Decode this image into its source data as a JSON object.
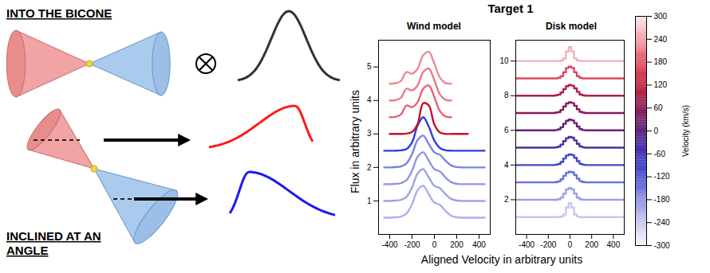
{
  "figure": {
    "title": "Target 1",
    "xlabel": "Aligned Velocity in arbitrary units",
    "ylabel": "Flux in arbitrary units"
  },
  "diagram": {
    "panels": [
      {
        "label": "INTO THE BICONE"
      },
      {
        "label": "INCLINED AT AN ANGLE"
      }
    ]
  },
  "chart_data": [
    {
      "type": "line",
      "title": "Wind model",
      "xlim": [
        -500,
        500
      ],
      "xticks": [
        -400,
        -200,
        0,
        200,
        400
      ],
      "ylim": [
        0,
        5.8
      ],
      "yticks": [
        1,
        2,
        3,
        4,
        5
      ],
      "line_style": "smooth",
      "series": [
        {
          "color": "#aab0ea",
          "x": [
            -450,
            -400,
            -350,
            -300,
            -250,
            -200,
            -150,
            -100,
            -50,
            0,
            50,
            100,
            150,
            200,
            250,
            300,
            350,
            400,
            450
          ],
          "values": [
            0.5,
            0.5,
            0.51,
            0.53,
            0.62,
            0.9,
            1.32,
            1.45,
            1.2,
            0.95,
            0.88,
            0.7,
            0.56,
            0.51,
            0.5,
            0.5,
            0.5,
            0.5,
            0.5
          ]
        },
        {
          "color": "#9ea3e6",
          "x": [
            -450,
            -400,
            -350,
            -300,
            -250,
            -200,
            -150,
            -100,
            -50,
            0,
            50,
            100,
            150,
            200,
            250,
            300,
            350,
            400,
            450
          ],
          "values": [
            1,
            1,
            1.01,
            1.03,
            1.12,
            1.4,
            1.82,
            1.95,
            1.7,
            1.45,
            1.38,
            1.2,
            1.06,
            1.01,
            1,
            1,
            1,
            1,
            1
          ]
        },
        {
          "color": "#8f95e2",
          "x": [
            -450,
            -400,
            -350,
            -300,
            -250,
            -200,
            -150,
            -100,
            -50,
            0,
            50,
            100,
            150,
            200,
            250,
            300,
            350,
            400,
            450
          ],
          "values": [
            1.5,
            1.5,
            1.51,
            1.53,
            1.62,
            1.9,
            2.32,
            2.45,
            2.2,
            1.95,
            1.88,
            1.7,
            1.56,
            1.51,
            1.5,
            1.5,
            1.5,
            1.5,
            1.5
          ]
        },
        {
          "color": "#7b82de",
          "x": [
            -450,
            -400,
            -350,
            -300,
            -250,
            -200,
            -150,
            -100,
            -50,
            0,
            50,
            100,
            150,
            200,
            250,
            300,
            350,
            400,
            450
          ],
          "values": [
            2,
            2,
            2.01,
            2.03,
            2.12,
            2.4,
            2.82,
            2.95,
            2.7,
            2.45,
            2.38,
            2.2,
            2.06,
            2.01,
            2,
            2,
            2,
            2,
            2
          ]
        },
        {
          "color": "#2b3ce0",
          "x": [
            -450,
            -400,
            -350,
            -300,
            -250,
            -200,
            -150,
            -100,
            -50,
            0,
            50,
            100,
            150,
            200,
            250,
            300,
            350,
            400,
            450
          ],
          "values": [
            2.5,
            2.5,
            2.5,
            2.51,
            2.55,
            2.75,
            3.25,
            3.5,
            3.22,
            2.8,
            2.58,
            2.51,
            2.5,
            2.5,
            2.5,
            2.5,
            2.5,
            2.5,
            2.5
          ]
        },
        {
          "color": "#c5102f",
          "x": [
            -400,
            -350,
            -300,
            -250,
            -200,
            -150,
            -100,
            -50,
            0,
            50,
            100,
            150,
            200,
            250,
            300
          ],
          "values": [
            3,
            3,
            3,
            3.01,
            3.06,
            3.3,
            3.92,
            3.85,
            3.28,
            3.04,
            3,
            3,
            3,
            3,
            3
          ]
        },
        {
          "color": "#e5626f",
          "x": [
            -400,
            -350,
            -300,
            -250,
            -200,
            -150,
            -100,
            -50,
            0,
            50,
            100,
            150
          ],
          "values": [
            3.5,
            3.51,
            3.58,
            3.85,
            3.8,
            3.95,
            4.35,
            4.45,
            4.1,
            3.68,
            3.52,
            3.5
          ]
        },
        {
          "color": "#ea7a84",
          "x": [
            -400,
            -350,
            -300,
            -250,
            -200,
            -150,
            -100,
            -50,
            0,
            50,
            100,
            150
          ],
          "values": [
            4,
            4.01,
            4.08,
            4.35,
            4.3,
            4.45,
            4.85,
            4.95,
            4.6,
            4.18,
            4.02,
            4
          ]
        },
        {
          "color": "#ee8a92",
          "x": [
            -400,
            -350,
            -300,
            -250,
            -200,
            -150,
            -100,
            -50,
            0,
            50,
            100,
            150
          ],
          "values": [
            4.5,
            4.51,
            4.58,
            4.85,
            4.8,
            4.95,
            5.35,
            5.45,
            5.1,
            4.68,
            4.52,
            4.5
          ]
        }
      ]
    },
    {
      "type": "line",
      "title": "Disk model",
      "xlim": [
        -500,
        500
      ],
      "xticks": [
        -400,
        -200,
        0,
        200,
        400
      ],
      "ylim": [
        0,
        11.2
      ],
      "yticks": [
        2,
        4,
        6,
        8,
        10
      ],
      "line_style": "step",
      "x": [
        -500,
        -150,
        -125,
        -100,
        -75,
        -50,
        -25,
        0,
        25,
        50,
        75,
        100,
        125,
        150,
        500
      ],
      "series": [
        {
          "color": "#c5c8ef",
          "values": [
            1,
            1,
            1,
            1,
            1.03,
            1.15,
            1.55,
            1.8,
            1.55,
            1.15,
            1.03,
            1,
            1,
            1,
            1
          ]
        },
        {
          "color": "#9aa0e6",
          "values": [
            2,
            2,
            2,
            2.03,
            2.12,
            2.35,
            2.6,
            2.68,
            2.6,
            2.35,
            2.12,
            2.03,
            2,
            2,
            2
          ]
        },
        {
          "color": "#6670d8",
          "values": [
            3,
            3,
            3.02,
            3.06,
            3.18,
            3.38,
            3.55,
            3.62,
            3.58,
            3.42,
            3.22,
            3.07,
            3.02,
            3,
            3
          ]
        },
        {
          "color": "#4048c8",
          "values": [
            4,
            4,
            4.02,
            4.06,
            4.18,
            4.38,
            4.55,
            4.62,
            4.58,
            4.42,
            4.22,
            4.07,
            4.02,
            4,
            4
          ]
        },
        {
          "color": "#4a2fa0",
          "values": [
            5,
            5,
            5.02,
            5.06,
            5.18,
            5.38,
            5.55,
            5.62,
            5.58,
            5.42,
            5.22,
            5.07,
            5.02,
            5,
            5
          ]
        },
        {
          "color": "#6a1f78",
          "values": [
            6,
            6,
            6.02,
            6.06,
            6.18,
            6.38,
            6.55,
            6.62,
            6.58,
            6.42,
            6.22,
            6.07,
            6.02,
            6,
            6
          ]
        },
        {
          "color": "#8a1a5a",
          "values": [
            7,
            7,
            7.02,
            7.06,
            7.18,
            7.38,
            7.55,
            7.62,
            7.58,
            7.42,
            7.22,
            7.07,
            7.02,
            7,
            7
          ]
        },
        {
          "color": "#b01f48",
          "values": [
            8,
            8,
            8.02,
            8.06,
            8.18,
            8.38,
            8.55,
            8.62,
            8.58,
            8.42,
            8.22,
            8.07,
            8.02,
            8,
            8
          ]
        },
        {
          "color": "#d84a60",
          "values": [
            9,
            9,
            9,
            9.03,
            9.12,
            9.35,
            9.6,
            9.68,
            9.6,
            9.35,
            9.12,
            9.03,
            9,
            9,
            9
          ]
        },
        {
          "color": "#f0b0b8",
          "values": [
            10,
            10,
            10,
            10,
            10.03,
            10.15,
            10.55,
            10.8,
            10.55,
            10.15,
            10.03,
            10,
            10,
            10,
            10
          ]
        }
      ],
      "colorbar": {
        "label": "Velocity (km/s)",
        "range": [
          -300,
          300
        ],
        "ticks": [
          -300,
          -240,
          -180,
          -120,
          -60,
          0,
          60,
          120,
          180,
          240,
          300
        ],
        "colors": [
          "#f5f3fa",
          "#c8c8ee",
          "#8f8fe0",
          "#4a50d0",
          "#3a2fb8",
          "#5a1f7a",
          "#8a1850",
          "#c0203a",
          "#e05060",
          "#f0a0aa",
          "#fbe8ea"
        ]
      }
    }
  ]
}
